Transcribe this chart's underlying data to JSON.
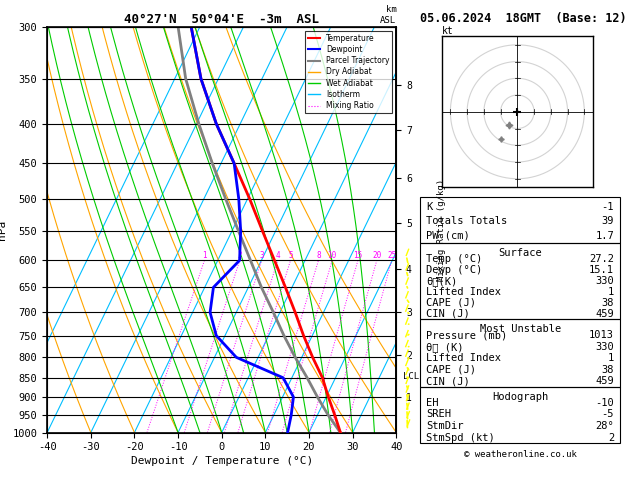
{
  "title_left": "40°27'N  50°04'E  -3m  ASL",
  "title_right": "05.06.2024  18GMT  (Base: 12)",
  "xlabel": "Dewpoint / Temperature (°C)",
  "ylabel_left": "hPa",
  "isotherm_color": "#00BFFF",
  "dry_adiabat_color": "#FFA500",
  "wet_adiabat_color": "#00CC00",
  "mixing_ratio_color": "#FF00FF",
  "temp_color": "red",
  "dewp_color": "blue",
  "parcel_color": "gray",
  "temp_profile": {
    "pressure": [
      1000,
      950,
      900,
      850,
      800,
      750,
      700,
      650,
      600,
      550,
      500,
      450,
      400,
      350,
      300
    ],
    "temperature": [
      27.2,
      24.0,
      20.5,
      17.0,
      12.5,
      8.0,
      3.5,
      -1.5,
      -7.0,
      -13.0,
      -19.5,
      -27.0,
      -35.5,
      -44.0,
      -52.0
    ]
  },
  "dewp_profile": {
    "pressure": [
      1000,
      950,
      900,
      850,
      800,
      750,
      700,
      650,
      600,
      550,
      500,
      450,
      400,
      350,
      300
    ],
    "dewpoint": [
      15.1,
      14.0,
      12.5,
      8.0,
      -5.0,
      -12.0,
      -16.0,
      -18.0,
      -15.0,
      -18.0,
      -22.0,
      -27.0,
      -35.5,
      -44.0,
      -52.0
    ]
  },
  "parcel_profile": {
    "pressure": [
      1000,
      950,
      900,
      850,
      800,
      750,
      700,
      650,
      600,
      550,
      500,
      450,
      400,
      350,
      300
    ],
    "temperature": [
      27.2,
      22.5,
      18.0,
      13.5,
      8.5,
      3.5,
      -1.5,
      -7.0,
      -12.5,
      -18.5,
      -25.0,
      -32.0,
      -39.5,
      -47.5,
      -55.0
    ]
  },
  "lcl_pressure": 848,
  "mixing_ratio_lines": [
    1,
    2,
    3,
    4,
    5,
    8,
    10,
    15,
    20,
    25
  ],
  "km_axis_ticks": {
    "km_values": [
      1,
      2,
      3,
      4,
      5,
      6,
      7,
      8
    ],
    "pressures": [
      900,
      795,
      700,
      615,
      537,
      470,
      408,
      357
    ]
  },
  "sounding_data": {
    "K": -1,
    "Totals_Totals": 39,
    "PW_cm": 1.7,
    "Surface_Temp": 27.2,
    "Surface_Dewp": 15.1,
    "Surface_ThetaE": 330,
    "Lifted_Index": 1,
    "CAPE": 38,
    "CIN": 459,
    "MU_Pressure": 1013,
    "MU_ThetaE": 330,
    "MU_Lifted_Index": 1,
    "MU_CAPE": 38,
    "MU_CIN": 459,
    "EH": -10,
    "SREH": -5,
    "StmDir": 28,
    "StmSpd": 2
  },
  "wind_barb_pressures": [
    1000,
    975,
    950,
    925,
    900,
    875,
    850,
    825,
    800,
    775,
    750,
    725,
    700,
    675,
    650,
    625,
    600
  ],
  "wind_directions": [
    180,
    190,
    200,
    210,
    220,
    230,
    240,
    250,
    260,
    270,
    280,
    270,
    260,
    250,
    240,
    230,
    220
  ],
  "wind_speeds": [
    2,
    3,
    4,
    5,
    5,
    6,
    7,
    7,
    6,
    5,
    5,
    4,
    4,
    3,
    3,
    2,
    2
  ]
}
